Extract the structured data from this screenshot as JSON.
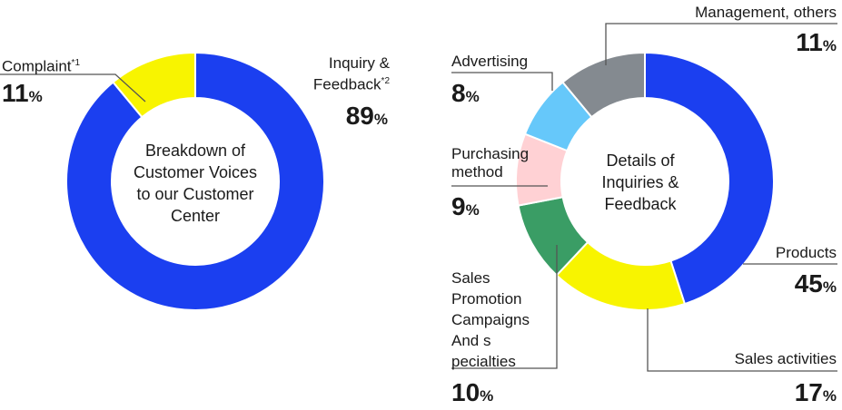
{
  "chart_data": [
    {
      "type": "pie",
      "title": "Breakdown of Customer Voices to our Customer Center",
      "title_lines": [
        "Breakdown of",
        "Customer Voices",
        "to our Customer",
        "Center"
      ],
      "unit": "%",
      "slices": [
        {
          "label": "Inquiry & Feedback",
          "note": "*2",
          "lines": [
            "Inquiry &",
            "Feedback"
          ],
          "value": 89,
          "color": "#1b3ff0"
        },
        {
          "label": "Complaint",
          "note": "*1",
          "lines": [
            "Complaint"
          ],
          "value": 11,
          "color": "#f8f400"
        }
      ]
    },
    {
      "type": "pie",
      "title": "Details of Inquiries & Feedback",
      "title_lines": [
        "Details of",
        "Inquiries &",
        "Feedback"
      ],
      "unit": "%",
      "slices": [
        {
          "label": "Products",
          "lines": [
            "Products"
          ],
          "value": 45,
          "color": "#1b3ff0"
        },
        {
          "label": "Sales activities",
          "lines": [
            "Sales activities"
          ],
          "value": 17,
          "color": "#f8f400"
        },
        {
          "label": "Sales Promotion Campaigns And s pecialties",
          "lines": [
            "Sales",
            "Promotion",
            "Campaigns",
            "And s",
            "pecialties"
          ],
          "value": 10,
          "color": "#3a9d65"
        },
        {
          "label": "Purchasing method",
          "lines": [
            "Purchasing",
            "method"
          ],
          "value": 9,
          "color": "#ffd1d4"
        },
        {
          "label": "Advertising",
          "lines": [
            "Advertising"
          ],
          "value": 8,
          "color": "#66c8fa"
        },
        {
          "label": "Management, others",
          "lines": [
            "Management, others"
          ],
          "value": 11,
          "color": "#848a90"
        }
      ]
    }
  ]
}
